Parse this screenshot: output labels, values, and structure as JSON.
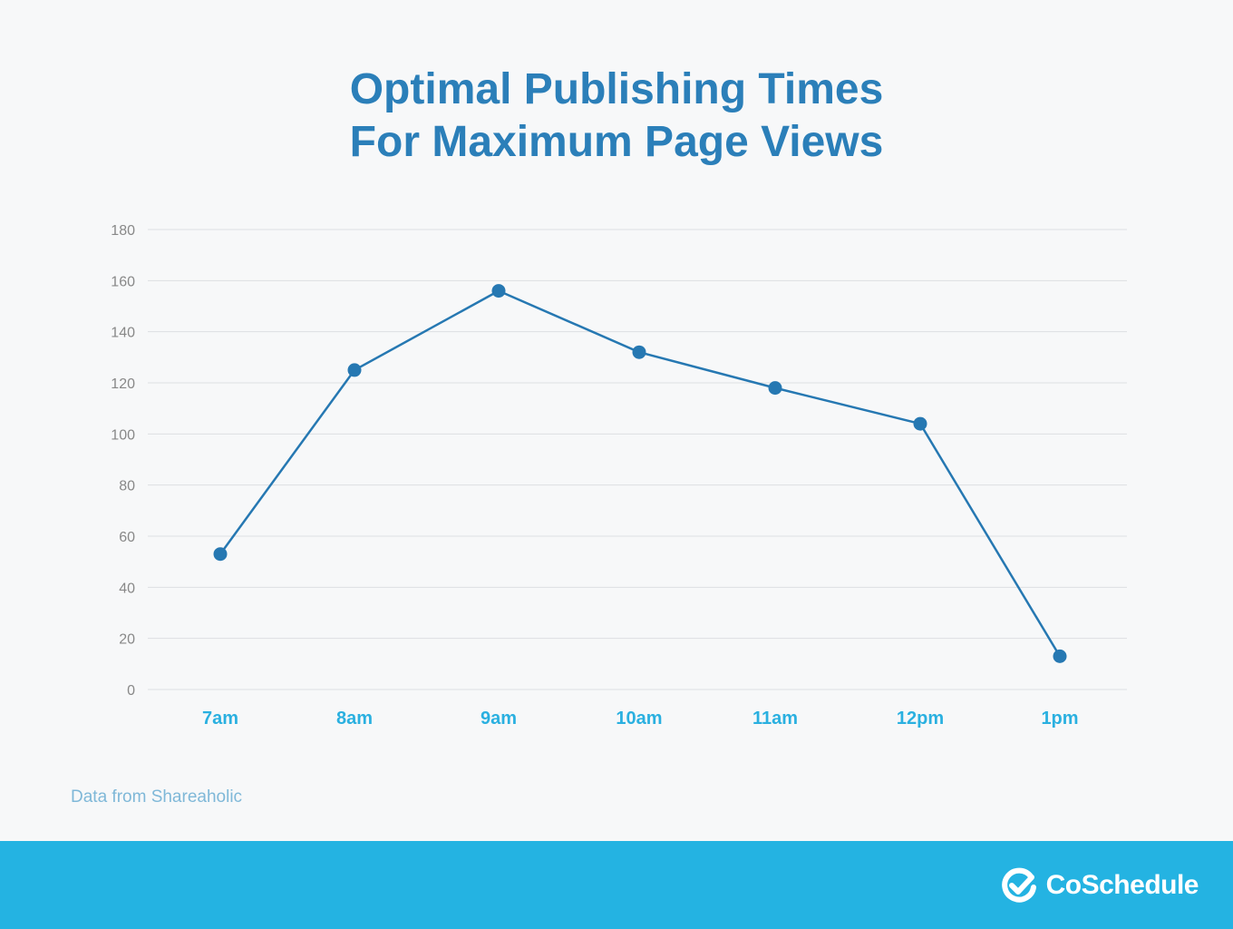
{
  "title": {
    "line1": "Optimal Publishing Times",
    "line2": "For Maximum Page Views"
  },
  "source_note": "Data from Shareaholic",
  "brand": {
    "name": "CoSchedule",
    "icon": "check-circle-icon"
  },
  "colors": {
    "title": "#2b7fb9",
    "line": "#2678b2",
    "x_tick_labels": "#2ab0e0",
    "y_tick_labels": "#888888",
    "grid": "#dcdfe2",
    "footer": "#24b3e2",
    "source_note": "#7fb8d8"
  },
  "chart_data": {
    "type": "line",
    "title": "Optimal Publishing Times For Maximum Page Views",
    "xlabel": "",
    "ylabel": "",
    "categories": [
      "7am",
      "8am",
      "9am",
      "10am",
      "11am",
      "12pm",
      "1pm"
    ],
    "series": [
      {
        "values": [
          53,
          125,
          156,
          132,
          118,
          104,
          13
        ]
      }
    ],
    "ylim": [
      0,
      180
    ],
    "yticks": [
      "0",
      "20",
      "40",
      "60",
      "80",
      "100",
      "120",
      "140",
      "160",
      "180"
    ],
    "grid": true,
    "legend": "none"
  }
}
